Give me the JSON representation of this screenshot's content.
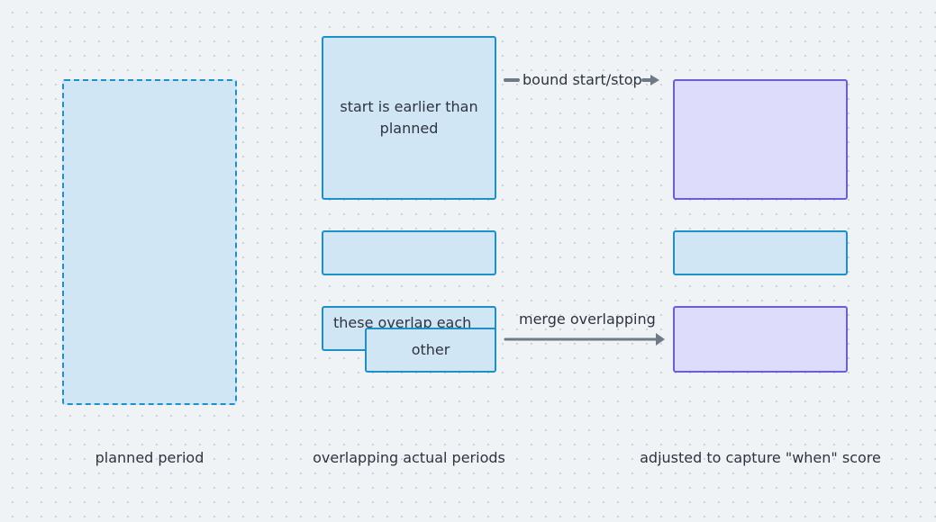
{
  "colors": {
    "background": "#f0f3f6",
    "blue_fill": "#d1e6f4",
    "blue_stroke": "#1e90c8",
    "purple_fill": "#dedcfb",
    "purple_stroke": "#6a5fd6",
    "arrow": "#6e7b86",
    "text": "#2d3440"
  },
  "columns": {
    "planned": "planned period",
    "actual": "overlapping actual periods",
    "adjusted": "adjusted to capture \"when\" score"
  },
  "boxes": {
    "early_start": "start is earlier than planned",
    "overlap_a": "these overlap each",
    "overlap_b": "other"
  },
  "arrows": {
    "bound": "bound start/stop",
    "merge": "merge overlapping"
  }
}
